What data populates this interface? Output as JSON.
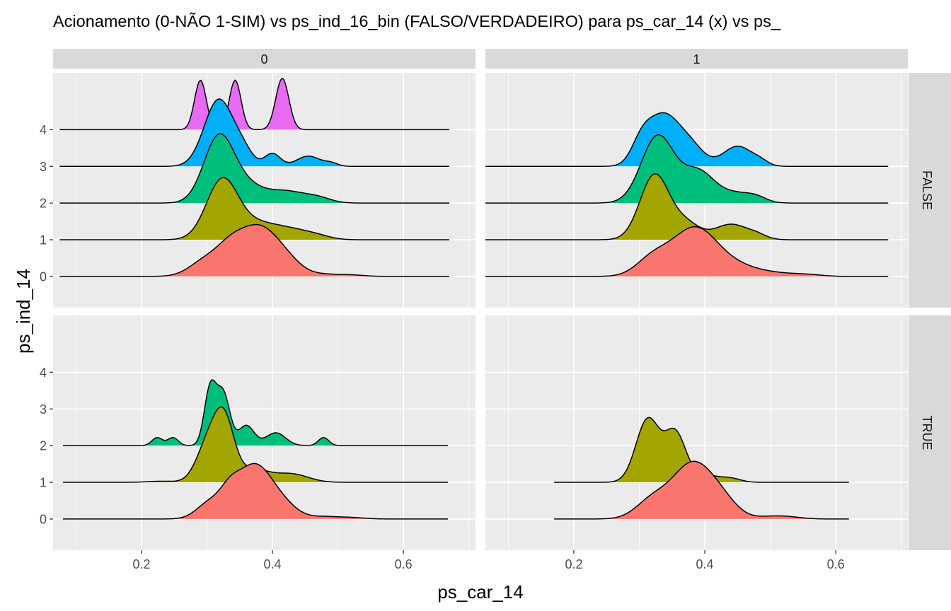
{
  "chart_data": {
    "type": "ridgeline",
    "title": "Acionamento (0-NÃO 1-SIM) vs ps_ind_16_bin (FALSO/VERDADEIRO) para ps_car_14 (x) vs ps_",
    "xlabel": "ps_car_14",
    "ylabel": "ps_ind_14",
    "xlim": [
      0.065,
      0.71
    ],
    "ylim": [
      -0.85,
      5.55
    ],
    "x_ticks": [
      0.2,
      0.4,
      0.6
    ],
    "x_tick_labels": [
      "0.2",
      "0.4",
      "0.6"
    ],
    "y_ticks": [
      0,
      1,
      2,
      3,
      4
    ],
    "y_tick_labels": [
      "0",
      "1",
      "2",
      "3",
      "4"
    ],
    "col_facets": [
      "0",
      "1"
    ],
    "row_facets": [
      "FALSE",
      "TRUE"
    ],
    "level_colors": {
      "0": "#F8766D",
      "1": "#A3A500",
      "2": "#00BF7D",
      "3": "#00B0F6",
      "4": "#E76BF3"
    },
    "panels": [
      {
        "col": "0",
        "row": "FALSE",
        "ridges": [
          {
            "level": 4,
            "xmin": 0.075,
            "xmax": 0.67,
            "peaks": [
              [
                0.29,
                1.35,
                0.009
              ],
              [
                0.343,
                1.35,
                0.009
              ],
              [
                0.415,
                1.4,
                0.01
              ]
            ]
          },
          {
            "level": 3,
            "xmin": 0.075,
            "xmax": 0.67,
            "peaks": [
              [
                0.318,
                1.82,
                0.022
              ],
              [
                0.355,
                0.35,
                0.015
              ],
              [
                0.4,
                0.35,
                0.012
              ],
              [
                0.455,
                0.28,
                0.018
              ],
              [
                0.49,
                0.08,
                0.01
              ]
            ]
          },
          {
            "level": 2,
            "xmin": 0.075,
            "xmax": 0.67,
            "peaks": [
              [
                0.318,
                1.78,
                0.023
              ],
              [
                0.36,
                0.42,
                0.025
              ],
              [
                0.42,
                0.32,
                0.03
              ],
              [
                0.47,
                0.12,
                0.02
              ]
            ]
          },
          {
            "level": 1,
            "xmin": 0.075,
            "xmax": 0.67,
            "peaks": [
              [
                0.323,
                1.6,
                0.024
              ],
              [
                0.375,
                0.4,
                0.03
              ],
              [
                0.43,
                0.25,
                0.03
              ],
              [
                0.47,
                0.06,
                0.02
              ]
            ]
          },
          {
            "level": 0,
            "xmin": 0.075,
            "xmax": 0.67,
            "peaks": [
              [
                0.3,
                0.45,
                0.025
              ],
              [
                0.335,
                0.45,
                0.02
              ],
              [
                0.376,
                1.28,
                0.03
              ],
              [
                0.42,
                0.35,
                0.025
              ],
              [
                0.48,
                0.05,
                0.02
              ],
              [
                0.52,
                0.04,
                0.02
              ]
            ]
          }
        ]
      },
      {
        "col": "1",
        "row": "FALSE",
        "ridges": [
          {
            "level": 3,
            "xmin": 0.065,
            "xmax": 0.68,
            "peaks": [
              [
                0.303,
                0.5,
                0.015
              ],
              [
                0.337,
                1.38,
                0.025
              ],
              [
                0.38,
                0.45,
                0.02
              ],
              [
                0.45,
                0.55,
                0.022
              ],
              [
                0.485,
                0.1,
                0.012
              ]
            ]
          },
          {
            "level": 2,
            "xmin": 0.065,
            "xmax": 0.68,
            "peaks": [
              [
                0.328,
                1.82,
                0.025
              ],
              [
                0.39,
                0.85,
                0.025
              ],
              [
                0.45,
                0.25,
                0.025
              ],
              [
                0.48,
                0.1,
                0.015
              ]
            ]
          },
          {
            "level": 1,
            "xmin": 0.065,
            "xmax": 0.68,
            "peaks": [
              [
                0.323,
                1.75,
                0.022
              ],
              [
                0.37,
                0.45,
                0.022
              ],
              [
                0.44,
                0.42,
                0.025
              ],
              [
                0.48,
                0.1,
                0.015
              ]
            ]
          },
          {
            "level": 0,
            "xmin": 0.065,
            "xmax": 0.68,
            "peaks": [
              [
                0.32,
                0.45,
                0.025
              ],
              [
                0.385,
                1.32,
                0.035
              ],
              [
                0.45,
                0.18,
                0.03
              ],
              [
                0.5,
                0.1,
                0.04
              ],
              [
                0.56,
                0.03,
                0.02
              ]
            ]
          }
        ]
      },
      {
        "col": "0",
        "row": "TRUE",
        "ridges": [
          {
            "level": 2,
            "xmin": 0.08,
            "xmax": 0.668,
            "peaks": [
              [
                0.224,
                0.22,
                0.008
              ],
              [
                0.248,
                0.22,
                0.008
              ],
              [
                0.305,
                1.55,
                0.009
              ],
              [
                0.325,
                1.4,
                0.01
              ],
              [
                0.36,
                0.55,
                0.012
              ],
              [
                0.405,
                0.35,
                0.015
              ],
              [
                0.478,
                0.22,
                0.008
              ]
            ]
          },
          {
            "level": 1,
            "xmin": 0.08,
            "xmax": 0.668,
            "peaks": [
              [
                0.23,
                0.03,
                0.02
              ],
              [
                0.303,
                1.1,
                0.018
              ],
              [
                0.327,
                1.45,
                0.015
              ],
              [
                0.37,
                0.35,
                0.025
              ],
              [
                0.43,
                0.22,
                0.025
              ]
            ]
          },
          {
            "level": 0,
            "xmin": 0.08,
            "xmax": 0.668,
            "peaks": [
              [
                0.305,
                0.45,
                0.02
              ],
              [
                0.335,
                0.5,
                0.015
              ],
              [
                0.37,
                1.35,
                0.025
              ],
              [
                0.41,
                0.45,
                0.025
              ],
              [
                0.48,
                0.06,
                0.02
              ],
              [
                0.52,
                0.04,
                0.02
              ]
            ]
          }
        ]
      },
      {
        "col": "1",
        "row": "TRUE",
        "ridges": [
          {
            "level": 1,
            "xmin": 0.17,
            "xmax": 0.62,
            "peaks": [
              [
                0.313,
                1.72,
                0.018
              ],
              [
                0.355,
                1.32,
                0.016
              ],
              [
                0.4,
                0.2,
                0.02
              ],
              [
                0.44,
                0.1,
                0.015
              ]
            ]
          },
          {
            "level": 0,
            "xmin": 0.17,
            "xmax": 0.62,
            "peaks": [
              [
                0.32,
                0.5,
                0.025
              ],
              [
                0.38,
                1.45,
                0.03
              ],
              [
                0.425,
                0.45,
                0.025
              ],
              [
                0.5,
                0.06,
                0.02
              ],
              [
                0.53,
                0.05,
                0.02
              ]
            ]
          }
        ]
      }
    ]
  }
}
